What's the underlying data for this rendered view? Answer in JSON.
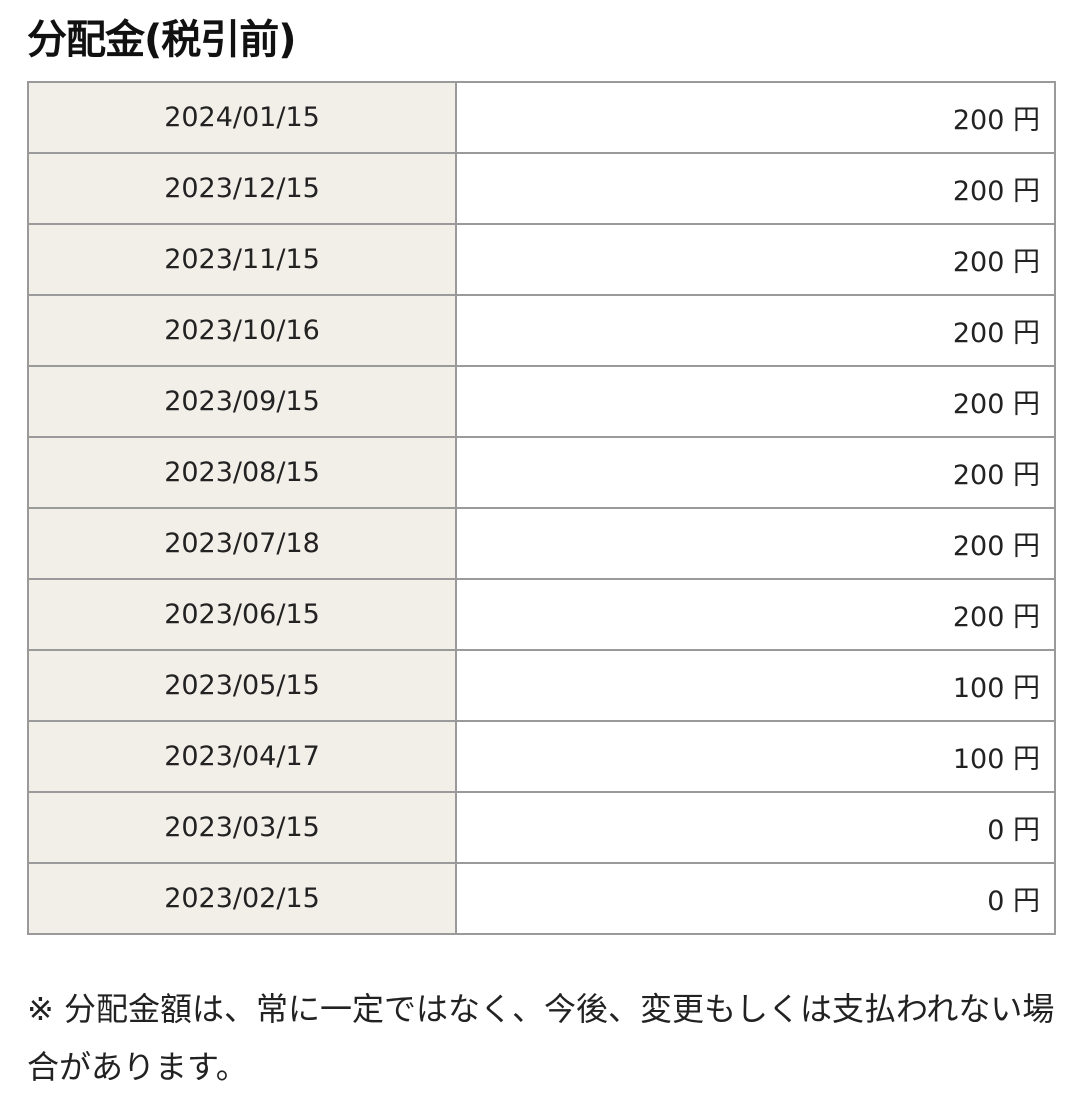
{
  "title": "分配金(税引前)",
  "rows": [
    {
      "date": "2024/01/15",
      "amount": "200 円"
    },
    {
      "date": "2023/12/15",
      "amount": "200 円"
    },
    {
      "date": "2023/11/15",
      "amount": "200 円"
    },
    {
      "date": "2023/10/16",
      "amount": "200 円"
    },
    {
      "date": "2023/09/15",
      "amount": "200 円"
    },
    {
      "date": "2023/08/15",
      "amount": "200 円"
    },
    {
      "date": "2023/07/18",
      "amount": "200 円"
    },
    {
      "date": "2023/06/15",
      "amount": "200 円"
    },
    {
      "date": "2023/05/15",
      "amount": "100 円"
    },
    {
      "date": "2023/04/17",
      "amount": "100 円"
    },
    {
      "date": "2023/03/15",
      "amount": "0 円"
    },
    {
      "date": "2023/02/15",
      "amount": "0 円"
    }
  ],
  "note": "※ 分配金額は、常に一定ではなく、今後、変更もしくは支払われない場合があります。",
  "colors": {
    "date_cell_bg": "#f2efe9",
    "border": "#9a9a9a"
  }
}
